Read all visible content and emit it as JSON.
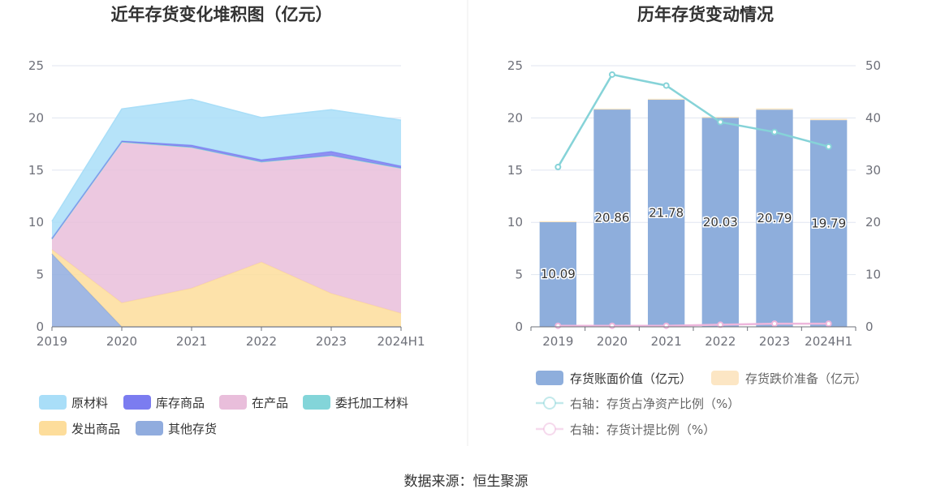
{
  "source": "数据来源：恒生聚源",
  "chart_data": [
    {
      "type": "area",
      "stacked": true,
      "title": "近年存货变化堆积图（亿元）",
      "categories": [
        "2019",
        "2020",
        "2021",
        "2022",
        "2023",
        "2024H1"
      ],
      "ylim": [
        0,
        25
      ],
      "yticks": [
        "0",
        "5",
        "10",
        "15",
        "20",
        "25"
      ],
      "series": [
        {
          "name": "其他存货",
          "color": "#90acde",
          "values": [
            7.0,
            0.0,
            0.0,
            0.0,
            0.0,
            0.0
          ]
        },
        {
          "name": "发出商品",
          "color": "#fddd9b",
          "values": [
            0.4,
            2.3,
            3.7,
            6.2,
            3.2,
            1.3
          ]
        },
        {
          "name": "在产品",
          "color": "#e9bedb",
          "values": [
            1.0,
            15.4,
            13.5,
            9.6,
            13.2,
            13.9
          ]
        },
        {
          "name": "委托加工材料",
          "color": "#83d5d9",
          "values": [
            0.0,
            0.0,
            0.0,
            0.0,
            0.0,
            0.0
          ]
        },
        {
          "name": "库存商品",
          "color": "#7b7cf0",
          "values": [
            0.1,
            0.1,
            0.2,
            0.2,
            0.4,
            0.2
          ]
        },
        {
          "name": "原材料",
          "color": "#a9def8",
          "values": [
            1.6,
            3.06,
            4.38,
            4.03,
            3.99,
            4.39
          ]
        }
      ],
      "legend_order": [
        "原材料",
        "库存商品",
        "在产品",
        "委托加工材料",
        "发出商品",
        "其他存货"
      ]
    },
    {
      "type": "bar",
      "stacked": true,
      "title": "历年存货变动情况",
      "categories": [
        "2019",
        "2020",
        "2021",
        "2022",
        "2023",
        "2024H1"
      ],
      "ylim": [
        0,
        25
      ],
      "yticks": [
        "0",
        "5",
        "10",
        "15",
        "20",
        "25"
      ],
      "y2lim": [
        0,
        50
      ],
      "y2ticks": [
        "0",
        "10",
        "20",
        "30",
        "40",
        "50"
      ],
      "series": [
        {
          "name": "存货账面价值（亿元）",
          "color": "#8eaedc",
          "axis": "left",
          "kind": "bar",
          "values": [
            10.09,
            20.86,
            21.78,
            20.03,
            20.79,
            19.79
          ],
          "labels": [
            "10.09",
            "20.86",
            "21.78",
            "20.03",
            "20.79",
            "19.79"
          ]
        },
        {
          "name": "存货跌价准备（亿元）",
          "color": "#fce6c4",
          "axis": "left",
          "kind": "bar",
          "values": [
            0.02,
            0.03,
            0.05,
            0.07,
            0.12,
            0.12
          ]
        },
        {
          "name": "右轴：存货占净资产比例（%）",
          "color": "#86d3d8",
          "axis": "right",
          "kind": "line",
          "values": [
            30.6,
            48.3,
            46.2,
            39.2,
            37.3,
            34.5
          ]
        },
        {
          "name": "右轴：存货计提比例（%）",
          "color": "#eeb6dc",
          "axis": "right",
          "kind": "line",
          "values": [
            0.2,
            0.2,
            0.2,
            0.4,
            0.6,
            0.6
          ]
        }
      ]
    }
  ]
}
